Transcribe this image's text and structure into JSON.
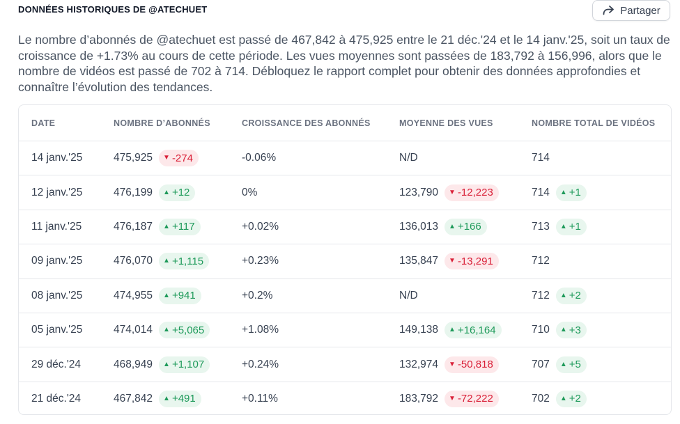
{
  "header": {
    "section_title": "DONNÉES HISTORIQUES DE @ATECHUET",
    "share_label": "Partager",
    "share_icon": "share-arrow-icon"
  },
  "summary": "Le nombre d’abonnés de @atechuet est passé de 467,842 à 475,925 entre le 21 déc.'24 et le 14 janv.'25, soit un taux de croissance de +1.73% au cours de cette période. Les vues moyennes sont passées de 183,792 à 156,996, alors que le nombre de vidéos est passé de 702 à 714. Débloquez le rapport complet pour obtenir des données approfondies et connaître l’évolution des tendances.",
  "colors": {
    "up_text": "#1e9a5a",
    "up_bg": "#e8f6ee",
    "down_text": "#d92038",
    "down_bg": "#fde8ea"
  },
  "table": {
    "columns": [
      "DATE",
      "NOMBRE D’ABONNÉS",
      "CROISSANCE DES ABONNÉS",
      "MOYENNE DES VUES",
      "NOMBRE TOTAL DE VIDÉOS"
    ],
    "rows": [
      {
        "date": "14 janv.'25",
        "subs": "475,925",
        "subs_delta": {
          "dir": "down",
          "value": "-274"
        },
        "growth": "-0.06%",
        "views": "N/D",
        "views_delta": null,
        "videos": "714",
        "videos_delta": null
      },
      {
        "date": "12 janv.'25",
        "subs": "476,199",
        "subs_delta": {
          "dir": "up",
          "value": "+12"
        },
        "growth": "0%",
        "views": "123,790",
        "views_delta": {
          "dir": "down",
          "value": "-12,223"
        },
        "videos": "714",
        "videos_delta": {
          "dir": "up",
          "value": "+1"
        }
      },
      {
        "date": "11 janv.'25",
        "subs": "476,187",
        "subs_delta": {
          "dir": "up",
          "value": "+117"
        },
        "growth": "+0.02%",
        "views": "136,013",
        "views_delta": {
          "dir": "up",
          "value": "+166"
        },
        "videos": "713",
        "videos_delta": {
          "dir": "up",
          "value": "+1"
        }
      },
      {
        "date": "09 janv.'25",
        "subs": "476,070",
        "subs_delta": {
          "dir": "up",
          "value": "+1,115"
        },
        "growth": "+0.23%",
        "views": "135,847",
        "views_delta": {
          "dir": "down",
          "value": "-13,291"
        },
        "videos": "712",
        "videos_delta": null
      },
      {
        "date": "08 janv.'25",
        "subs": "474,955",
        "subs_delta": {
          "dir": "up",
          "value": "+941"
        },
        "growth": "+0.2%",
        "views": "N/D",
        "views_delta": null,
        "videos": "712",
        "videos_delta": {
          "dir": "up",
          "value": "+2"
        }
      },
      {
        "date": "05 janv.'25",
        "subs": "474,014",
        "subs_delta": {
          "dir": "up",
          "value": "+5,065"
        },
        "growth": "+1.08%",
        "views": "149,138",
        "views_delta": {
          "dir": "up",
          "value": "+16,164"
        },
        "videos": "710",
        "videos_delta": {
          "dir": "up",
          "value": "+3"
        }
      },
      {
        "date": "29 déc.'24",
        "subs": "468,949",
        "subs_delta": {
          "dir": "up",
          "value": "+1,107"
        },
        "growth": "+0.24%",
        "views": "132,974",
        "views_delta": {
          "dir": "down",
          "value": "-50,818"
        },
        "videos": "707",
        "videos_delta": {
          "dir": "up",
          "value": "+5"
        }
      },
      {
        "date": "21 déc.'24",
        "subs": "467,842",
        "subs_delta": {
          "dir": "up",
          "value": "+491"
        },
        "growth": "+0.11%",
        "views": "183,792",
        "views_delta": {
          "dir": "down",
          "value": "-72,222"
        },
        "videos": "702",
        "videos_delta": {
          "dir": "up",
          "value": "+2"
        }
      }
    ]
  }
}
